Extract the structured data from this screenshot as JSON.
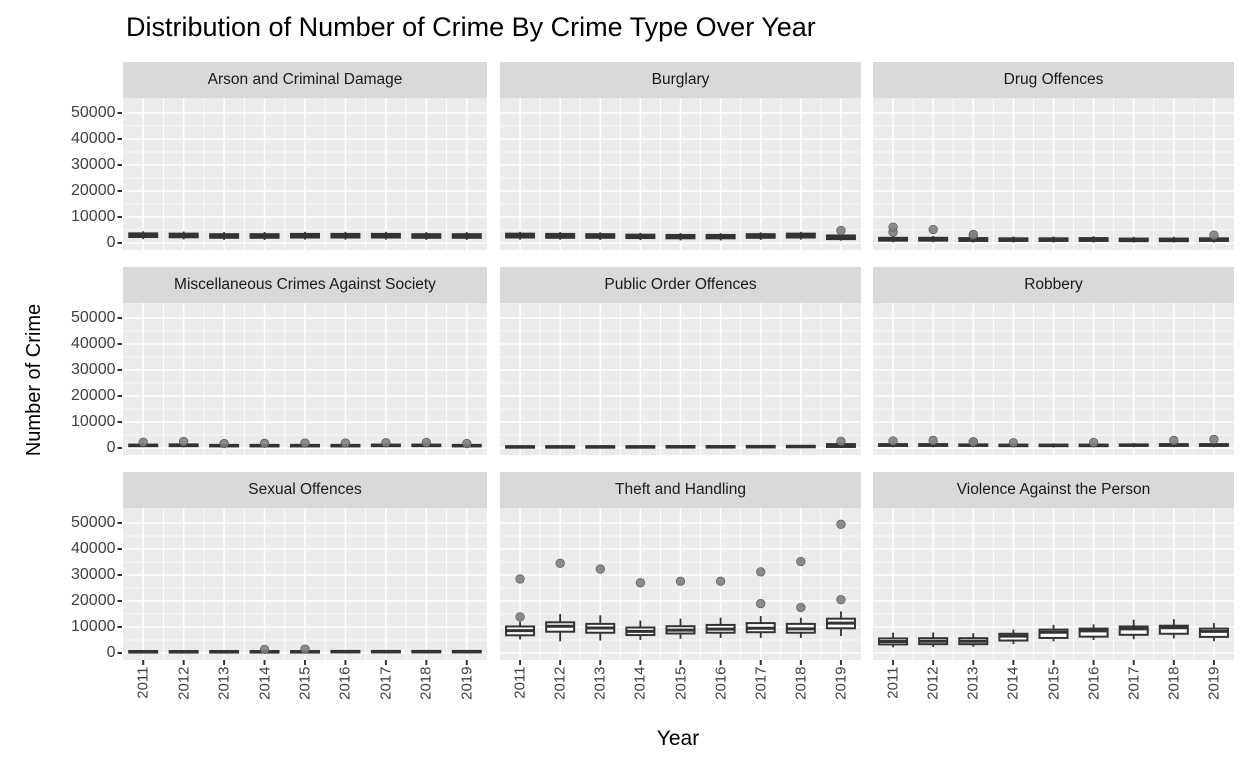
{
  "chart_data": {
    "type": "boxplot",
    "title": "Distribution of Number of Crime By Crime Type Over Year",
    "xlabel": "Year",
    "ylabel": "Number of Crime",
    "years": [
      "2011",
      "2012",
      "2013",
      "2014",
      "2015",
      "2016",
      "2017",
      "2018",
      "2019"
    ],
    "y_ticks": [
      0,
      10000,
      20000,
      30000,
      40000,
      50000
    ],
    "ylim": [
      0,
      50000
    ],
    "legend": "none",
    "grid": "white major and minor gridlines on grey panels",
    "facet_layout": "3x3",
    "facets": [
      {
        "name": "Arson and Criminal Damage",
        "boxes": [
          {
            "stats": [
              1500,
              2300,
              3000,
              3700,
              4500
            ],
            "outliers": []
          },
          {
            "stats": [
              1400,
              2200,
              2900,
              3600,
              4400
            ],
            "outliers": []
          },
          {
            "stats": [
              1200,
              2000,
              2700,
              3400,
              4200
            ],
            "outliers": []
          },
          {
            "stats": [
              1200,
              2000,
              2700,
              3400,
              4200
            ],
            "outliers": []
          },
          {
            "stats": [
              1300,
              2100,
              2800,
              3500,
              4300
            ],
            "outliers": []
          },
          {
            "stats": [
              1300,
              2100,
              2800,
              3500,
              4300
            ],
            "outliers": []
          },
          {
            "stats": [
              1300,
              2100,
              2800,
              3500,
              4300
            ],
            "outliers": []
          },
          {
            "stats": [
              1200,
              2000,
              2700,
              3400,
              4200
            ],
            "outliers": []
          },
          {
            "stats": [
              1200,
              2000,
              2700,
              3400,
              4200
            ],
            "outliers": []
          }
        ]
      },
      {
        "name": "Burglary",
        "boxes": [
          {
            "stats": [
              1300,
              2100,
              2900,
              3600,
              4300
            ],
            "outliers": []
          },
          {
            "stats": [
              1300,
              2000,
              2800,
              3500,
              4200
            ],
            "outliers": []
          },
          {
            "stats": [
              1200,
              2000,
              2700,
              3400,
              4100
            ],
            "outliers": []
          },
          {
            "stats": [
              1100,
              1900,
              2500,
              3200,
              3900
            ],
            "outliers": []
          },
          {
            "stats": [
              1000,
              1800,
              2400,
              3100,
              3800
            ],
            "outliers": []
          },
          {
            "stats": [
              1000,
              1800,
              2400,
              3100,
              3800
            ],
            "outliers": []
          },
          {
            "stats": [
              1200,
              2000,
              2700,
              3400,
              4100
            ],
            "outliers": []
          },
          {
            "stats": [
              1300,
              2100,
              2900,
              3600,
              4300
            ],
            "outliers": []
          },
          {
            "stats": [
              900,
              1500,
              2200,
              2900,
              3600
            ],
            "outliers": [
              4800
            ]
          }
        ]
      },
      {
        "name": "Drug Offences",
        "boxes": [
          {
            "stats": [
              300,
              900,
              1400,
              2000,
              2800
            ],
            "outliers": [
              4200,
              6100
            ]
          },
          {
            "stats": [
              300,
              900,
              1400,
              2000,
              2700
            ],
            "outliers": [
              5200
            ]
          },
          {
            "stats": [
              200,
              800,
              1300,
              1900,
              2600
            ],
            "outliers": [
              3100,
              3300
            ]
          },
          {
            "stats": [
              200,
              800,
              1200,
              1800,
              2500
            ],
            "outliers": []
          },
          {
            "stats": [
              200,
              800,
              1200,
              1800,
              2500
            ],
            "outliers": []
          },
          {
            "stats": [
              200,
              800,
              1300,
              1900,
              2600
            ],
            "outliers": []
          },
          {
            "stats": [
              200,
              700,
              1200,
              1700,
              2400
            ],
            "outliers": []
          },
          {
            "stats": [
              200,
              700,
              1200,
              1700,
              2400
            ],
            "outliers": []
          },
          {
            "stats": [
              200,
              800,
              1300,
              1800,
              2500
            ],
            "outliers": [
              3000
            ]
          }
        ]
      },
      {
        "name": "Miscellaneous Crimes Against Society",
        "boxes": [
          {
            "stats": [
              300,
              700,
              1000,
              1300,
              1600
            ],
            "outliers": [
              2200
            ]
          },
          {
            "stats": [
              300,
              700,
              1000,
              1400,
              1700
            ],
            "outliers": [
              2500
            ]
          },
          {
            "stats": [
              200,
              600,
              900,
              1200,
              1500
            ],
            "outliers": [
              1700
            ]
          },
          {
            "stats": [
              200,
              600,
              900,
              1200,
              1500
            ],
            "outliers": [
              1800
            ]
          },
          {
            "stats": [
              200,
              600,
              900,
              1200,
              1500
            ],
            "outliers": [
              1900
            ]
          },
          {
            "stats": [
              300,
              600,
              900,
              1200,
              1500
            ],
            "outliers": [
              1900
            ]
          },
          {
            "stats": [
              300,
              700,
              1000,
              1300,
              1600
            ],
            "outliers": [
              2000
            ]
          },
          {
            "stats": [
              300,
              700,
              1000,
              1300,
              1600
            ],
            "outliers": [
              2100
            ]
          },
          {
            "stats": [
              200,
              600,
              900,
              1200,
              1500
            ],
            "outliers": [
              1700
            ]
          }
        ]
      },
      {
        "name": "Public Order Offences",
        "boxes": [
          {
            "stats": [
              100,
              300,
              500,
              700,
              900
            ],
            "outliers": []
          },
          {
            "stats": [
              100,
              300,
              500,
              700,
              900
            ],
            "outliers": []
          },
          {
            "stats": [
              100,
              300,
              500,
              700,
              1000
            ],
            "outliers": []
          },
          {
            "stats": [
              100,
              300,
              500,
              700,
              1000
            ],
            "outliers": []
          },
          {
            "stats": [
              100,
              300,
              550,
              750,
              1000
            ],
            "outliers": []
          },
          {
            "stats": [
              100,
              300,
              550,
              750,
              1000
            ],
            "outliers": []
          },
          {
            "stats": [
              100,
              350,
              550,
              800,
              1100
            ],
            "outliers": []
          },
          {
            "stats": [
              100,
              350,
              600,
              850,
              1100
            ],
            "outliers": []
          },
          {
            "stats": [
              100,
              400,
              900,
              1500,
              2000
            ],
            "outliers": [
              2600
            ]
          }
        ]
      },
      {
        "name": "Robbery",
        "boxes": [
          {
            "stats": [
              300,
              800,
              1100,
              1500,
              2000
            ],
            "outliers": [
              2700
            ]
          },
          {
            "stats": [
              300,
              800,
              1100,
              1500,
              2000
            ],
            "outliers": [
              2900
            ]
          },
          {
            "stats": [
              300,
              800,
              1100,
              1400,
              1900
            ],
            "outliers": [
              2300,
              2400
            ]
          },
          {
            "stats": [
              200,
              700,
              1000,
              1300,
              1800
            ],
            "outliers": [
              2000
            ]
          },
          {
            "stats": [
              200,
              700,
              1000,
              1300,
              1800
            ],
            "outliers": []
          },
          {
            "stats": [
              200,
              700,
              1000,
              1300,
              1800
            ],
            "outliers": [
              2100
            ]
          },
          {
            "stats": [
              300,
              800,
              1100,
              1400,
              1900
            ],
            "outliers": []
          },
          {
            "stats": [
              300,
              800,
              1100,
              1500,
              2000
            ],
            "outliers": [
              2900
            ]
          },
          {
            "stats": [
              300,
              800,
              1100,
              1500,
              2000
            ],
            "outliers": [
              3300
            ]
          }
        ]
      },
      {
        "name": "Sexual Offences",
        "boxes": [
          {
            "stats": [
              100,
              350,
              550,
              750,
              1000
            ],
            "outliers": []
          },
          {
            "stats": [
              100,
              350,
              550,
              750,
              1000
            ],
            "outliers": []
          },
          {
            "stats": [
              100,
              350,
              550,
              750,
              1000
            ],
            "outliers": []
          },
          {
            "stats": [
              100,
              350,
              550,
              750,
              950
            ],
            "outliers": [
              1400
            ]
          },
          {
            "stats": [
              100,
              350,
              550,
              750,
              950
            ],
            "outliers": [
              1500
            ]
          },
          {
            "stats": [
              100,
              350,
              600,
              800,
              1000
            ],
            "outliers": []
          },
          {
            "stats": [
              100,
              350,
              600,
              800,
              1050
            ],
            "outliers": []
          },
          {
            "stats": [
              100,
              400,
              600,
              800,
              1050
            ],
            "outliers": []
          },
          {
            "stats": [
              100,
              400,
              600,
              800,
              1050
            ],
            "outliers": []
          }
        ]
      },
      {
        "name": "Theft and Handling",
        "boxes": [
          {
            "stats": [
              5200,
              6800,
              8600,
              10200,
              12000
            ],
            "outliers": [
              13900,
              28500
            ]
          },
          {
            "stats": [
              4500,
              8200,
              10300,
              11800,
              15000
            ],
            "outliers": [
              34500
            ]
          },
          {
            "stats": [
              4800,
              7800,
              9600,
              11200,
              14500
            ],
            "outliers": [
              32300
            ]
          },
          {
            "stats": [
              5000,
              6900,
              8300,
              9800,
              12500
            ],
            "outliers": [
              27000
            ]
          },
          {
            "stats": [
              5500,
              7500,
              8800,
              10300,
              13200
            ],
            "outliers": [
              27600
            ]
          },
          {
            "stats": [
              5800,
              7800,
              9200,
              10800,
              13600
            ],
            "outliers": [
              27600
            ]
          },
          {
            "stats": [
              5800,
              8000,
              9500,
              11500,
              14200
            ],
            "outliers": [
              19000,
              31200
            ]
          },
          {
            "stats": [
              5800,
              7800,
              9300,
              11200,
              13600
            ],
            "outliers": [
              17500,
              35200
            ]
          },
          {
            "stats": [
              6500,
              9500,
              11500,
              13200,
              16000
            ],
            "outliers": [
              20500,
              49500
            ]
          }
        ]
      },
      {
        "name": "Violence Against the Person",
        "boxes": [
          {
            "stats": [
              2200,
              3300,
              4400,
              5600,
              7800
            ],
            "outliers": []
          },
          {
            "stats": [
              2300,
              3400,
              4500,
              5700,
              7900
            ],
            "outliers": []
          },
          {
            "stats": [
              2400,
              3400,
              4500,
              5700,
              7600
            ],
            "outliers": []
          },
          {
            "stats": [
              3400,
              4800,
              6500,
              7400,
              9000
            ],
            "outliers": []
          },
          {
            "stats": [
              4500,
              5800,
              8000,
              9000,
              10800
            ],
            "outliers": []
          },
          {
            "stats": [
              5000,
              6300,
              8500,
              9400,
              11000
            ],
            "outliers": []
          },
          {
            "stats": [
              5300,
              7000,
              9300,
              10200,
              12800
            ],
            "outliers": []
          },
          {
            "stats": [
              5600,
              7400,
              9700,
              10500,
              13000
            ],
            "outliers": []
          },
          {
            "stats": [
              4500,
              6200,
              8300,
              9400,
              11500
            ],
            "outliers": []
          }
        ]
      }
    ],
    "colors": {
      "panel_bg": "#EBEBEB",
      "strip_bg": "#D9D9D9",
      "grid": "#FFFFFF",
      "box_stroke": "#333333",
      "box_fill": "#FFFFFF",
      "outlier_fill": "#7F7F7F",
      "axis_text": "#404040",
      "tick_mark": "#333333"
    }
  }
}
